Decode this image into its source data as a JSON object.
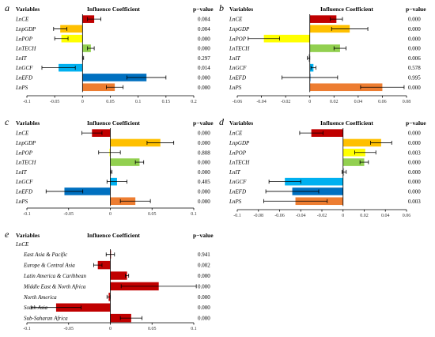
{
  "colors": {
    "red": "#c00000",
    "orange_gold": "#ffc000",
    "yellow": "#ffff00",
    "green": "#92d050",
    "gray": "#a6a6a6",
    "sky": "#00b0f0",
    "blue": "#0070c0",
    "orange": "#ed7d31",
    "axis": "#000000",
    "errorbar": "#000000"
  },
  "headers": {
    "variables": "Variables",
    "influence": "Influence Coefficient",
    "pvalue": "p−value"
  },
  "chart_data": [
    {
      "id": "a",
      "type": "bar",
      "orientation": "horizontal",
      "letter": "a",
      "categories": [
        "LnCE",
        "LnpGDP",
        "LnPOP",
        "LnTECH",
        "LnIT",
        "LnGCF",
        "LnEFD",
        "LnPS"
      ],
      "values": [
        0.021,
        -0.04,
        -0.038,
        0.015,
        0.001,
        -0.043,
        0.115,
        0.058
      ],
      "errors": [
        0.012,
        0.012,
        0.012,
        0.006,
        0.001,
        0.03,
        0.035,
        0.015
      ],
      "colors": [
        "#c00000",
        "#ffc000",
        "#ffff00",
        "#92d050",
        "#a6a6a6",
        "#00b0f0",
        "#0070c0",
        "#ed7d31"
      ],
      "pvalues": [
        "0.004",
        "0.004",
        "0.000",
        "0.000",
        "0.297",
        "0.014",
        "0.000",
        "0.000"
      ],
      "xlim": [
        -0.1,
        0.2
      ],
      "xticks": [
        -0.1,
        -0.05,
        0,
        0.05,
        0.1,
        0.15,
        0.2
      ],
      "xtick_labels": [
        "-0.1",
        "-0.05",
        "0",
        "0.05",
        "0.1",
        "0.15",
        "0.2"
      ]
    },
    {
      "id": "b",
      "type": "bar",
      "orientation": "horizontal",
      "letter": "b",
      "categories": [
        "LnCE",
        "LnpGDP",
        "LnPOP",
        "LnTECH",
        "LnIT",
        "LnGCF",
        "LnEFD",
        "LnPS"
      ],
      "values": [
        0.022,
        0.033,
        -0.038,
        0.025,
        -0.001,
        0.003,
        0.0,
        0.06
      ],
      "errors": [
        0.005,
        0.015,
        0.013,
        0.005,
        0.001,
        0.002,
        0.023,
        0.018
      ],
      "colors": [
        "#c00000",
        "#ffc000",
        "#ffff00",
        "#92d050",
        "#a6a6a6",
        "#00b0f0",
        "#0070c0",
        "#ed7d31"
      ],
      "pvalues": [
        "0.000",
        "0.000",
        "0.000",
        "0.000",
        "0.006",
        "0.578",
        "0.995",
        "0.000"
      ],
      "xlim": [
        -0.06,
        0.08
      ],
      "xticks": [
        -0.06,
        -0.04,
        -0.02,
        0,
        0.02,
        0.04,
        0.06,
        0.08
      ],
      "xtick_labels": [
        "-0.06",
        "-0.04",
        "-0.02",
        "0",
        "0.02",
        "0.04",
        "0.06",
        "0.08"
      ]
    },
    {
      "id": "c",
      "type": "bar",
      "orientation": "horizontal",
      "letter": "c",
      "categories": [
        "LnCE",
        "LnpGDP",
        "LnPOP",
        "LnTECH",
        "LnIT",
        "LnGCF",
        "LnEFD",
        "LnPS"
      ],
      "values": [
        -0.022,
        0.06,
        -0.001,
        0.035,
        0.001,
        0.008,
        -0.055,
        0.03
      ],
      "errors": [
        0.012,
        0.016,
        0.013,
        0.005,
        0.001,
        0.012,
        0.022,
        0.018
      ],
      "colors": [
        "#c00000",
        "#ffc000",
        "#ffff00",
        "#92d050",
        "#a6a6a6",
        "#00b0f0",
        "#0070c0",
        "#ed7d31"
      ],
      "pvalues": [
        "0.000",
        "0.000",
        "0.808",
        "0.000",
        "0.000",
        "0.405",
        "0.000",
        "0.000"
      ],
      "xlim": [
        -0.1,
        0.1
      ],
      "xticks": [
        -0.1,
        -0.05,
        0,
        0.05,
        0.1
      ],
      "xtick_labels": [
        "-0.1",
        "-0.05",
        "0",
        "0.05",
        "0.1"
      ]
    },
    {
      "id": "d",
      "type": "bar",
      "orientation": "horizontal",
      "letter": "d",
      "categories": [
        "LnCE",
        "LnpGDP",
        "LnPOP",
        "LnTECH",
        "LnIT",
        "LnGCF",
        "LnEFD",
        "LnPS"
      ],
      "values": [
        -0.03,
        0.036,
        0.021,
        0.02,
        0.001,
        -0.055,
        -0.048,
        -0.045
      ],
      "errors": [
        0.011,
        0.01,
        0.01,
        0.004,
        0.002,
        0.015,
        0.025,
        0.03
      ],
      "colors": [
        "#c00000",
        "#ffc000",
        "#ffff00",
        "#92d050",
        "#a6a6a6",
        "#00b0f0",
        "#0070c0",
        "#ed7d31"
      ],
      "pvalues": [
        "0.000",
        "0.000",
        "0.003",
        "0.000",
        "0.000",
        "0.000",
        "0.000",
        "0.003"
      ],
      "xlim": [
        -0.1,
        0.06
      ],
      "xticks": [
        -0.1,
        -0.08,
        -0.06,
        -0.04,
        -0.02,
        0,
        0.02,
        0.04,
        0.06
      ],
      "xtick_labels": [
        "-0.1",
        "-0.08",
        "-0.06",
        "-0.04",
        "-0.02",
        "0",
        "0.02",
        "0.04",
        "0.06"
      ]
    },
    {
      "id": "e",
      "type": "bar",
      "orientation": "horizontal",
      "letter": "e",
      "header_label": "LnCE",
      "categories": [
        "East Asia & Pacific",
        "Europe & Central Asia",
        "Latin America & Caribbean",
        "Middle East & North Africa",
        "North America",
        "South Asia",
        "Sub-Saharan Africa"
      ],
      "values": [
        0.0,
        -0.015,
        0.02,
        0.058,
        -0.002,
        -0.065,
        0.025
      ],
      "errors": [
        0.005,
        0.005,
        0.002,
        0.045,
        0.002,
        0.03,
        0.013
      ],
      "colors": [
        "#c00000",
        "#c00000",
        "#c00000",
        "#c00000",
        "#c00000",
        "#c00000",
        "#c00000"
      ],
      "pvalues": [
        "0.941",
        "0.002",
        "0.000",
        "0.000",
        "0.000",
        "0.000",
        "0.000"
      ],
      "xlim": [
        -0.1,
        0.1
      ],
      "xticks": [
        -0.1,
        -0.05,
        0,
        0.05,
        0.1
      ],
      "xtick_labels": [
        "-0.1",
        "-0.05",
        "0",
        "0.05",
        "0.1"
      ]
    }
  ]
}
